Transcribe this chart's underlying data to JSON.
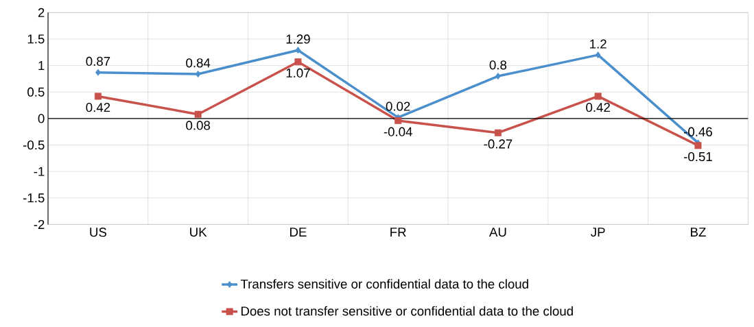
{
  "chart_data": {
    "type": "line",
    "categories": [
      "US",
      "UK",
      "DE",
      "FR",
      "AU",
      "JP",
      "BZ"
    ],
    "series": [
      {
        "name": "Transfers sensitive or confidential data to the cloud",
        "color": "#4a8fcc",
        "marker": "diamond",
        "values": [
          0.87,
          0.84,
          1.29,
          0.02,
          0.8,
          1.2,
          -0.46
        ]
      },
      {
        "name": "Does not transfer sensitive or confidential data to the cloud",
        "color": "#c9514c",
        "marker": "square",
        "values": [
          0.42,
          0.08,
          1.07,
          -0.04,
          -0.27,
          0.42,
          -0.51
        ]
      }
    ],
    "ylim": [
      -2,
      2
    ],
    "yticks": [
      -2,
      -1.5,
      -1,
      -0.5,
      0,
      0.5,
      1,
      1.5,
      2
    ],
    "grid": true,
    "legend": "bottom",
    "data_labels": true
  }
}
